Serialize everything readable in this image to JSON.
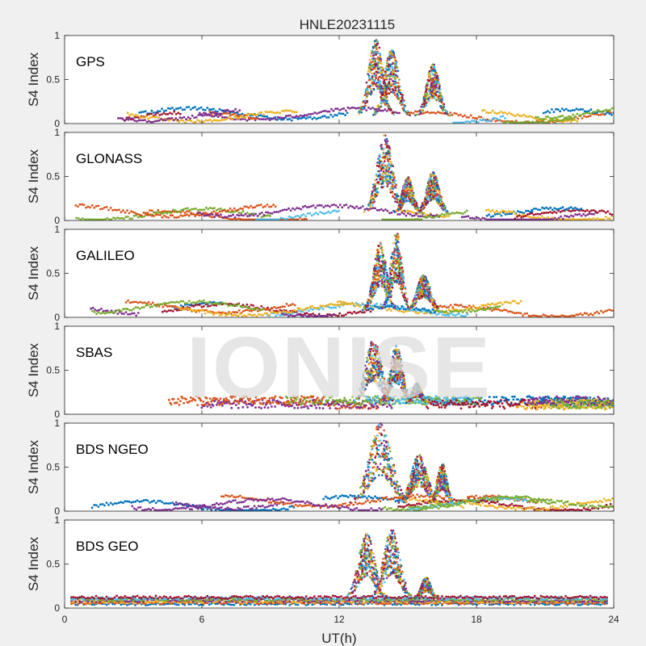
{
  "figure": {
    "title": "HNLE20231115",
    "watermark": "IONISE",
    "background_color": "#f0f0f0",
    "axes_background_color": "#ffffff"
  },
  "chart_data": {
    "type": "scatter",
    "layout": "6 stacked panels sharing x-axis",
    "title": "HNLE20231115",
    "xlabel": "UT(h)",
    "ylabel": "S4 Index",
    "xlim": [
      0,
      24
    ],
    "ylim": [
      0,
      1
    ],
    "x_ticks": [
      0,
      6,
      12,
      18,
      24
    ],
    "y_ticks": [
      0,
      0.5,
      1
    ],
    "y_tick_labels": [
      "0",
      "0.5",
      "1"
    ],
    "grid": false,
    "legend": "none",
    "series_colors": [
      "#0072BD",
      "#D95319",
      "#EDB120",
      "#7E2F8E",
      "#77AC30",
      "#4DBEEE",
      "#A2142F"
    ],
    "panels": [
      {
        "name": "GPS",
        "baseline": 0.08,
        "events": [
          {
            "center": 13.6,
            "width": 0.45,
            "peak": 0.97
          },
          {
            "center": 14.3,
            "width": 0.45,
            "peak": 0.85
          },
          {
            "center": 16.1,
            "width": 0.4,
            "peak": 0.68
          }
        ]
      },
      {
        "name": "GLONASS",
        "baseline": 0.07,
        "events": [
          {
            "center": 14.0,
            "width": 0.5,
            "peak": 0.98
          },
          {
            "center": 15.0,
            "width": 0.35,
            "peak": 0.5
          },
          {
            "center": 16.1,
            "width": 0.4,
            "peak": 0.55
          }
        ]
      },
      {
        "name": "GALILEO",
        "baseline": 0.08,
        "events": [
          {
            "center": 13.8,
            "width": 0.4,
            "peak": 0.85
          },
          {
            "center": 14.5,
            "width": 0.35,
            "peak": 0.98
          },
          {
            "center": 15.7,
            "width": 0.4,
            "peak": 0.5
          }
        ]
      },
      {
        "name": "SBAS",
        "baseline": 0.12,
        "events": [
          {
            "center": 13.5,
            "width": 0.5,
            "peak": 0.85
          },
          {
            "center": 14.5,
            "width": 0.4,
            "peak": 0.78
          },
          {
            "center": 15.4,
            "width": 0.3,
            "peak": 0.35
          }
        ]
      },
      {
        "name": "BDS NGEO",
        "baseline": 0.08,
        "events": [
          {
            "center": 13.8,
            "width": 0.7,
            "peak": 1.0
          },
          {
            "center": 15.5,
            "width": 0.5,
            "peak": 0.65
          },
          {
            "center": 16.5,
            "width": 0.3,
            "peak": 0.55
          }
        ]
      },
      {
        "name": "BDS GEO",
        "baseline": 0.1,
        "events": [
          {
            "center": 13.2,
            "width": 0.5,
            "peak": 0.85
          },
          {
            "center": 14.3,
            "width": 0.5,
            "peak": 0.9
          },
          {
            "center": 15.8,
            "width": 0.3,
            "peak": 0.35
          }
        ]
      }
    ]
  }
}
